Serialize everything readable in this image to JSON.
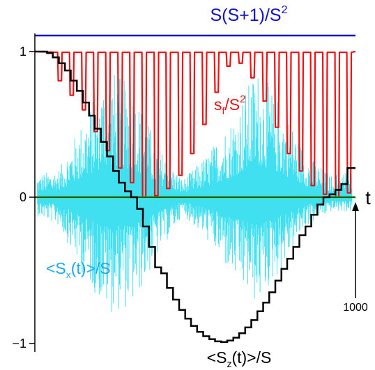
{
  "chart_data": {
    "type": "line",
    "title": "",
    "xlabel": "t",
    "ylabel": "",
    "xlim": [
      0,
      1000
    ],
    "ylim": [
      -1,
      1
    ],
    "yticks": [
      {
        "value": 1,
        "label": "1"
      },
      {
        "value": 0,
        "label": "0"
      },
      {
        "value": -1,
        "label": "−1"
      }
    ],
    "xtick_annotation": {
      "value": 1000,
      "label": "1000"
    },
    "grid": false,
    "colors": {
      "bound": "#1010c8",
      "sf": "#ee1111",
      "sz": "#000000",
      "sx": "#40e0f0",
      "zero_line": "#40e040"
    },
    "series": [
      {
        "key": "bound",
        "name_parts": [
          "S(S+1)/S",
          "2"
        ],
        "style": "constant",
        "y": 1.11
      },
      {
        "key": "sf",
        "name_parts": [
          "s",
          "f",
          "/S",
          "2"
        ],
        "style": "oscillating",
        "envelope_top": 1.0,
        "dips": [
          {
            "t": 78,
            "min": 0.8
          },
          {
            "t": 115,
            "min": 0.7
          },
          {
            "t": 153,
            "min": 0.6
          },
          {
            "t": 190,
            "min": 0.45
          },
          {
            "t": 228,
            "min": 0.32
          },
          {
            "t": 266,
            "min": 0.2
          },
          {
            "t": 303,
            "min": 0.1
          },
          {
            "t": 341,
            "min": 0.0
          },
          {
            "t": 379,
            "min": 0.01
          },
          {
            "t": 416,
            "min": 0.06
          },
          {
            "t": 454,
            "min": 0.15
          },
          {
            "t": 491,
            "min": 0.3
          },
          {
            "t": 529,
            "min": 0.5
          },
          {
            "t": 567,
            "min": 0.72
          },
          {
            "t": 604,
            "min": 0.9
          },
          {
            "t": 642,
            "min": 0.92
          },
          {
            "t": 679,
            "min": 0.82
          },
          {
            "t": 717,
            "min": 0.66
          },
          {
            "t": 755,
            "min": 0.48
          },
          {
            "t": 792,
            "min": 0.3
          },
          {
            "t": 830,
            "min": 0.18
          },
          {
            "t": 867,
            "min": 0.08
          },
          {
            "t": 905,
            "min": 0.02
          },
          {
            "t": 943,
            "min": 0.0
          },
          {
            "t": 980,
            "min": 0.03
          }
        ]
      },
      {
        "key": "sz",
        "name_parts": [
          "<S",
          "z",
          "(t)>/S"
        ],
        "style": "staircase",
        "points": [
          [
            0,
            1.0
          ],
          [
            38,
            0.99
          ],
          [
            56,
            0.96
          ],
          [
            75,
            0.92
          ],
          [
            94,
            0.87
          ],
          [
            112,
            0.8
          ],
          [
            131,
            0.73
          ],
          [
            150,
            0.65
          ],
          [
            169,
            0.56
          ],
          [
            187,
            0.47
          ],
          [
            206,
            0.38
          ],
          [
            225,
            0.28
          ],
          [
            244,
            0.18
          ],
          [
            262,
            0.1
          ],
          [
            281,
            0.04
          ],
          [
            300,
            0.0
          ],
          [
            319,
            -0.08
          ],
          [
            337,
            -0.2
          ],
          [
            356,
            -0.34
          ],
          [
            375,
            -0.48
          ],
          [
            394,
            -0.52
          ],
          [
            412,
            -0.62
          ],
          [
            431,
            -0.7
          ],
          [
            450,
            -0.77
          ],
          [
            469,
            -0.83
          ],
          [
            487,
            -0.88
          ],
          [
            506,
            -0.92
          ],
          [
            525,
            -0.95
          ],
          [
            544,
            -0.97
          ],
          [
            562,
            -0.985
          ],
          [
            581,
            -0.99
          ],
          [
            600,
            -0.98
          ],
          [
            619,
            -0.96
          ],
          [
            637,
            -0.93
          ],
          [
            656,
            -0.89
          ],
          [
            675,
            -0.84
          ],
          [
            694,
            -0.78
          ],
          [
            712,
            -0.72
          ],
          [
            731,
            -0.65
          ],
          [
            750,
            -0.57
          ],
          [
            769,
            -0.49
          ],
          [
            787,
            -0.42
          ],
          [
            806,
            -0.34
          ],
          [
            825,
            -0.26
          ],
          [
            844,
            -0.2
          ],
          [
            862,
            -0.12
          ],
          [
            881,
            -0.05
          ],
          [
            900,
            0.0
          ],
          [
            919,
            0.02
          ],
          [
            937,
            0.05
          ],
          [
            956,
            0.09
          ],
          [
            975,
            0.2
          ],
          [
            1000,
            0.2
          ]
        ]
      },
      {
        "key": "sx",
        "name_parts": [
          "<S",
          "x",
          "(t)>/S"
        ],
        "style": "noise",
        "amplitude_positive": [
          0.15,
          0.2,
          0.55,
          0.9,
          0.75,
          0.35,
          0.12,
          0.3,
          0.55,
          0.9,
          0.65,
          0.3,
          0.15,
          0.2
        ],
        "amplitude_negative": [
          0.12,
          0.2,
          0.55,
          0.8,
          0.75,
          0.4,
          0.12,
          0.3,
          0.55,
          0.75,
          0.5,
          0.2,
          0.1,
          0.1
        ]
      }
    ]
  }
}
